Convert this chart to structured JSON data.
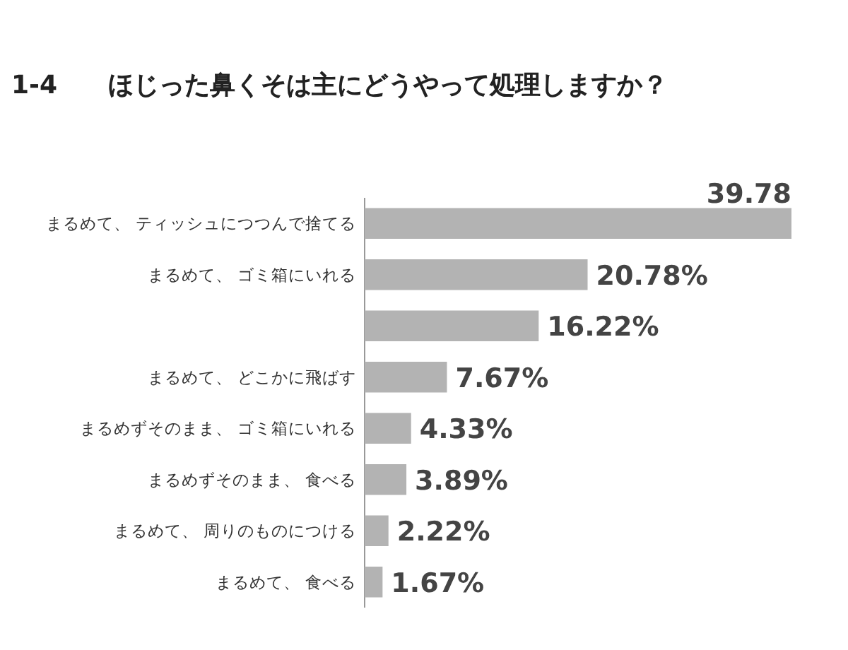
{
  "chart_data": {
    "type": "bar",
    "orientation": "horizontal",
    "title": "1-4　　ほじった鼻くそは主にどうやって処理しますか？",
    "categories": [
      "まるめて、 ティッシュにつつんで捨てる",
      "まるめて、 ゴミ箱にいれる",
      null,
      "まるめて、 どこかに飛ばす",
      "まるめずそのまま、 ゴミ箱にいれる",
      "まるめずそのまま、 食べる",
      "まるめて、 周りのものにつける",
      "まるめて、 食べる"
    ],
    "values": [
      39.78,
      20.78,
      16.22,
      7.67,
      4.33,
      3.89,
      2.22,
      1.67
    ],
    "value_labels": [
      "39.78",
      "20.78%",
      "16.22%",
      "7.67%",
      "4.33%",
      "3.89%",
      "2.22%",
      "1.67%"
    ],
    "color": "#b3b3b3"
  }
}
